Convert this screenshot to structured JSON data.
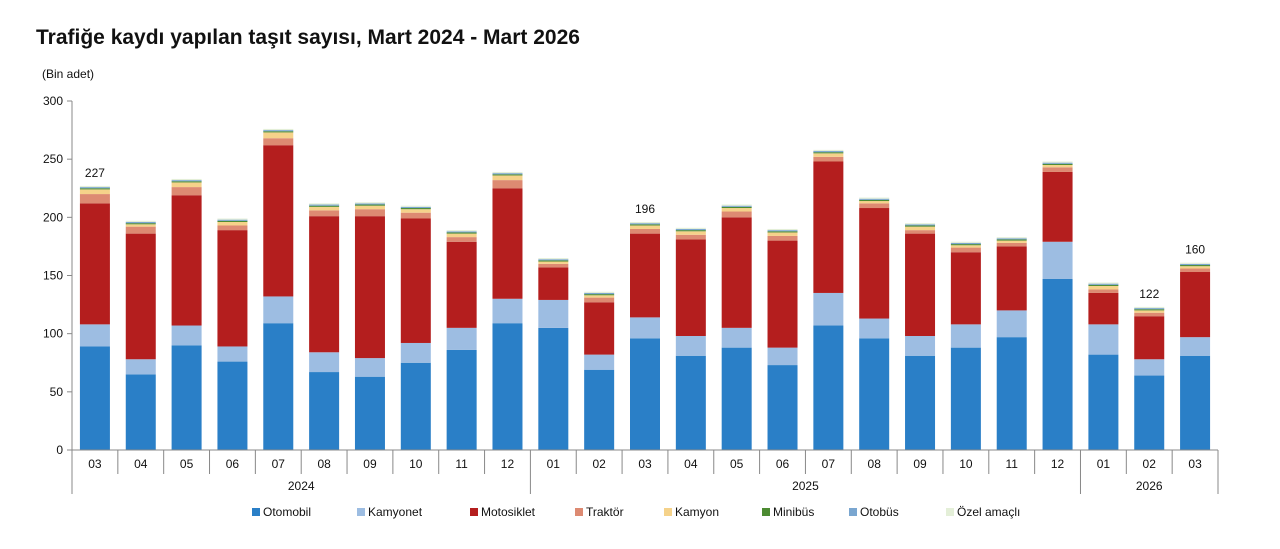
{
  "chart_data": {
    "type": "bar",
    "stacked": true,
    "title": "Trafiğe kaydı yapılan taşıt sayısı, Mart 2024 - Mart 2026",
    "unit": "(Bin adet)",
    "ylim": [
      0,
      300
    ],
    "yticks": [
      "0",
      "50",
      "100",
      "150",
      "200",
      "250",
      "300"
    ],
    "categories": [
      "03",
      "04",
      "05",
      "06",
      "07",
      "08",
      "09",
      "10",
      "11",
      "12",
      "01",
      "02",
      "03",
      "04",
      "05",
      "06",
      "07",
      "08",
      "09",
      "10",
      "11",
      "12",
      "01",
      "02",
      "03"
    ],
    "year_groups": [
      {
        "label": "2024",
        "start": 0,
        "end": 9
      },
      {
        "label": "2025",
        "start": 10,
        "end": 21
      },
      {
        "label": "2026",
        "start": 22,
        "end": 24
      }
    ],
    "series": [
      {
        "name": "Otomobil",
        "color": "#2a7fc7",
        "values": [
          89,
          65,
          90,
          76,
          109,
          67,
          63,
          75,
          86,
          109,
          105,
          69,
          96,
          81,
          88,
          73,
          107,
          96,
          81,
          88,
          97,
          147,
          82,
          64,
          81
        ]
      },
      {
        "name": "Kamyonet",
        "color": "#9dbde2",
        "values": [
          19,
          13,
          17,
          13,
          23,
          17,
          16,
          17,
          19,
          21,
          24,
          13,
          18,
          17,
          17,
          15,
          28,
          17,
          17,
          20,
          23,
          32,
          26,
          14,
          16
        ]
      },
      {
        "name": "Motosiklet",
        "color": "#b41e1e",
        "values": [
          104,
          108,
          112,
          100,
          130,
          117,
          122,
          107,
          74,
          95,
          28,
          45,
          72,
          83,
          95,
          92,
          113,
          95,
          88,
          62,
          55,
          60,
          27,
          37,
          56
        ]
      },
      {
        "name": "Traktör",
        "color": "#dd8a72",
        "values": [
          8,
          6,
          7,
          4,
          6,
          5,
          6,
          5,
          4,
          7,
          3,
          4,
          4,
          4,
          5,
          4,
          4,
          4,
          3,
          4,
          3,
          4,
          3,
          3,
          3
        ]
      },
      {
        "name": "Kamyon",
        "color": "#f5d28a",
        "values": [
          4,
          2,
          4,
          3,
          5,
          3,
          3,
          3,
          3,
          4,
          2,
          2,
          3,
          3,
          3,
          3,
          3,
          2,
          3,
          2,
          2,
          2,
          3,
          2,
          2
        ]
      },
      {
        "name": "Minibüs",
        "color": "#4c8b32",
        "values": [
          1,
          1,
          1,
          1,
          1,
          1,
          1,
          1,
          1,
          1,
          1,
          1,
          1,
          1,
          1,
          1,
          1,
          1,
          1,
          1,
          1,
          1,
          1,
          1,
          1
        ]
      },
      {
        "name": "Otobüs",
        "color": "#7aa6d0",
        "values": [
          1,
          1,
          1,
          1,
          1,
          1,
          1,
          1,
          1,
          1,
          1,
          1,
          1,
          1,
          1,
          1,
          1,
          1,
          1,
          1,
          1,
          1,
          1,
          1,
          1
        ]
      },
      {
        "name": "Özel amaçlı",
        "color": "#e4efd8",
        "values": [
          1,
          1,
          1,
          1,
          1,
          1,
          1,
          1,
          1,
          1,
          1,
          1,
          1,
          1,
          1,
          1,
          1,
          1,
          1,
          1,
          1,
          1,
          1,
          1,
          1
        ]
      }
    ],
    "data_labels": [
      {
        "index": 0,
        "text": "227"
      },
      {
        "index": 12,
        "text": "196"
      },
      {
        "index": 23,
        "text": "122"
      },
      {
        "index": 24,
        "text": "160"
      }
    ],
    "legend_position": "bottom"
  }
}
